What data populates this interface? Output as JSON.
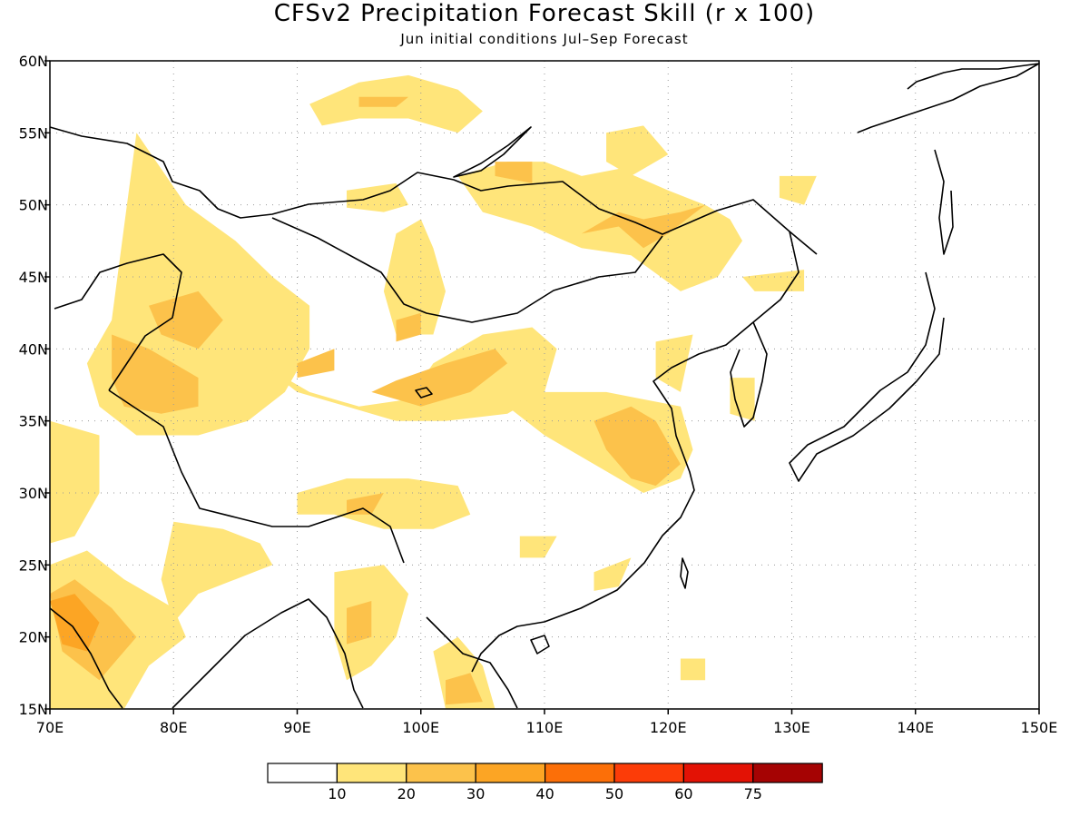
{
  "title": "CFSv2 Precipitation Forecast Skill (r x 100)",
  "subtitle": "Jun initial conditions  Jul–Sep Forecast",
  "map": {
    "lon_range": [
      70,
      150
    ],
    "lat_range": [
      15,
      60
    ],
    "lon_ticks": [
      {
        "value": 70,
        "label": "70E"
      },
      {
        "value": 80,
        "label": "80E"
      },
      {
        "value": 90,
        "label": "90E"
      },
      {
        "value": 100,
        "label": "100E"
      },
      {
        "value": 110,
        "label": "110E"
      },
      {
        "value": 120,
        "label": "120E"
      },
      {
        "value": 130,
        "label": "130E"
      },
      {
        "value": 140,
        "label": "140E"
      },
      {
        "value": 150,
        "label": "150E"
      }
    ],
    "lat_ticks": [
      {
        "value": 15,
        "label": "15N"
      },
      {
        "value": 20,
        "label": "20N"
      },
      {
        "value": 25,
        "label": "25N"
      },
      {
        "value": 30,
        "label": "30N"
      },
      {
        "value": 35,
        "label": "35N"
      },
      {
        "value": 40,
        "label": "40N"
      },
      {
        "value": 45,
        "label": "45N"
      },
      {
        "value": 50,
        "label": "50N"
      },
      {
        "value": 55,
        "label": "55N"
      },
      {
        "value": 60,
        "label": "60N"
      }
    ],
    "grid": true,
    "colors": {
      "c10": "#ffe57a",
      "c20": "#fcc24b",
      "c30": "#fca524"
    },
    "regions": [
      {
        "level": 10,
        "points": [
          [
            77,
            55
          ],
          [
            81,
            50
          ],
          [
            85,
            47.5
          ],
          [
            88,
            45
          ],
          [
            91,
            43
          ],
          [
            91,
            40
          ],
          [
            89,
            37
          ],
          [
            86,
            35
          ],
          [
            82,
            34
          ],
          [
            77,
            34
          ],
          [
            74,
            36
          ],
          [
            73,
            39
          ],
          [
            75,
            42
          ]
        ]
      },
      {
        "level": 20,
        "points": [
          [
            75,
            41
          ],
          [
            78,
            40
          ],
          [
            82,
            38
          ],
          [
            82,
            36
          ],
          [
            79,
            35.5
          ],
          [
            76,
            36
          ],
          [
            75,
            38
          ]
        ]
      },
      {
        "level": 20,
        "points": [
          [
            78,
            43
          ],
          [
            82,
            44
          ],
          [
            84,
            42
          ],
          [
            82,
            40
          ],
          [
            79,
            41
          ]
        ]
      },
      {
        "level": 10,
        "points": [
          [
            87,
            39
          ],
          [
            91,
            37
          ],
          [
            95,
            36
          ],
          [
            99,
            36.5
          ],
          [
            101,
            39
          ],
          [
            105,
            41
          ],
          [
            109,
            41.5
          ],
          [
            111,
            40
          ],
          [
            110,
            37
          ],
          [
            107,
            35.5
          ],
          [
            102,
            35
          ],
          [
            98,
            35
          ],
          [
            94,
            36
          ],
          [
            90,
            37
          ]
        ]
      },
      {
        "level": 20,
        "points": [
          [
            96,
            37
          ],
          [
            100,
            36
          ],
          [
            104,
            37
          ],
          [
            107,
            39
          ],
          [
            106,
            40
          ],
          [
            102,
            39
          ],
          [
            98,
            37.8
          ]
        ]
      },
      {
        "level": 20,
        "points": [
          [
            90,
            39
          ],
          [
            93,
            40
          ],
          [
            93,
            38.5
          ],
          [
            90,
            38
          ]
        ]
      },
      {
        "level": 10,
        "points": [
          [
            98,
            48
          ],
          [
            100,
            49
          ],
          [
            101,
            47
          ],
          [
            102,
            44
          ],
          [
            101,
            41
          ],
          [
            98,
            41
          ],
          [
            97,
            44
          ]
        ]
      },
      {
        "level": 20,
        "points": [
          [
            98,
            42
          ],
          [
            100,
            42.5
          ],
          [
            100,
            41
          ],
          [
            98,
            40.5
          ]
        ]
      },
      {
        "level": 10,
        "points": [
          [
            104,
            37
          ],
          [
            107,
            36
          ],
          [
            110,
            34
          ],
          [
            114,
            32
          ],
          [
            118,
            30
          ],
          [
            121,
            31
          ],
          [
            122,
            33
          ],
          [
            121,
            36
          ],
          [
            118,
            36.5
          ],
          [
            115,
            37
          ],
          [
            111,
            37
          ]
        ]
      },
      {
        "level": 20,
        "points": [
          [
            114,
            35
          ],
          [
            117,
            36
          ],
          [
            119,
            35
          ],
          [
            121,
            32
          ],
          [
            119,
            30.5
          ],
          [
            117,
            31
          ],
          [
            115,
            33
          ]
        ]
      },
      {
        "level": 10,
        "points": [
          [
            103,
            52
          ],
          [
            107,
            53
          ],
          [
            110,
            53
          ],
          [
            113,
            52
          ],
          [
            116,
            52.5
          ],
          [
            120,
            51
          ],
          [
            123,
            50
          ],
          [
            125,
            49
          ],
          [
            126,
            47.5
          ],
          [
            124,
            45
          ],
          [
            121,
            44
          ],
          [
            117,
            46.5
          ],
          [
            113,
            47
          ],
          [
            109,
            48.5
          ],
          [
            105,
            49.5
          ]
        ]
      },
      {
        "level": 20,
        "points": [
          [
            113,
            48
          ],
          [
            116,
            48.5
          ],
          [
            118,
            47
          ],
          [
            120,
            48
          ],
          [
            123,
            50
          ],
          [
            121,
            49.5
          ],
          [
            118,
            49
          ],
          [
            116,
            49.5
          ]
        ]
      },
      {
        "level": 20,
        "points": [
          [
            106,
            53
          ],
          [
            109,
            53
          ],
          [
            109,
            51.5
          ],
          [
            106,
            52
          ]
        ]
      },
      {
        "level": 10,
        "points": [
          [
            91,
            57
          ],
          [
            95,
            58.5
          ],
          [
            99,
            59
          ],
          [
            103,
            58
          ],
          [
            105,
            56.5
          ],
          [
            103,
            55
          ],
          [
            99,
            56
          ],
          [
            95,
            56
          ],
          [
            92,
            55.5
          ]
        ]
      },
      {
        "level": 20,
        "points": [
          [
            95,
            57.5
          ],
          [
            99,
            57.5
          ],
          [
            98,
            56.8
          ],
          [
            95,
            56.8
          ]
        ]
      },
      {
        "level": 10,
        "points": [
          [
            94,
            51
          ],
          [
            98,
            51.5
          ],
          [
            99,
            50
          ],
          [
            97,
            49.5
          ],
          [
            94,
            49.8
          ]
        ]
      },
      {
        "level": 10,
        "points": [
          [
            115,
            55
          ],
          [
            118,
            55.5
          ],
          [
            120,
            53.5
          ],
          [
            117,
            52
          ],
          [
            115,
            53
          ]
        ]
      },
      {
        "level": 10,
        "points": [
          [
            129,
            52
          ],
          [
            132,
            52
          ],
          [
            131,
            50
          ],
          [
            129,
            50.5
          ]
        ]
      },
      {
        "level": 10,
        "points": [
          [
            126,
            45
          ],
          [
            131,
            45.5
          ],
          [
            131,
            44
          ],
          [
            127,
            44
          ]
        ]
      },
      {
        "level": 10,
        "points": [
          [
            70,
            35
          ],
          [
            74,
            34
          ],
          [
            74,
            30
          ],
          [
            72,
            27
          ],
          [
            70,
            26.5
          ]
        ]
      },
      {
        "level": 10,
        "points": [
          [
            70,
            25
          ],
          [
            73,
            26
          ],
          [
            76,
            24
          ],
          [
            80,
            22
          ],
          [
            81,
            20
          ],
          [
            78,
            18
          ],
          [
            76,
            15
          ],
          [
            70,
            15
          ]
        ]
      },
      {
        "level": 20,
        "points": [
          [
            70,
            23
          ],
          [
            72,
            24
          ],
          [
            75,
            22
          ],
          [
            77,
            20
          ],
          [
            74,
            17
          ],
          [
            71,
            19
          ]
        ]
      },
      {
        "level": 30,
        "points": [
          [
            70,
            22.5
          ],
          [
            72,
            23
          ],
          [
            74,
            21
          ],
          [
            73,
            19
          ],
          [
            71,
            19.5
          ]
        ]
      },
      {
        "level": 10,
        "points": [
          [
            80,
            28
          ],
          [
            84,
            27.5
          ],
          [
            87,
            26.5
          ],
          [
            88,
            25
          ],
          [
            85,
            24
          ],
          [
            82,
            23
          ],
          [
            80,
            21
          ],
          [
            79,
            24
          ]
        ]
      },
      {
        "level": 10,
        "points": [
          [
            90,
            30
          ],
          [
            94,
            31
          ],
          [
            99,
            31
          ],
          [
            103,
            30.5
          ],
          [
            104,
            28.5
          ],
          [
            101,
            27.5
          ],
          [
            97,
            27.5
          ],
          [
            93,
            28.5
          ],
          [
            90,
            28.5
          ]
        ]
      },
      {
        "level": 20,
        "points": [
          [
            94,
            29.5
          ],
          [
            97,
            30
          ],
          [
            96,
            28.5
          ],
          [
            94,
            28.5
          ]
        ]
      },
      {
        "level": 10,
        "points": [
          [
            93,
            24.5
          ],
          [
            97,
            25
          ],
          [
            99,
            23
          ],
          [
            98,
            20
          ],
          [
            96,
            18
          ],
          [
            94,
            17
          ],
          [
            93,
            20
          ]
        ]
      },
      {
        "level": 20,
        "points": [
          [
            94,
            22
          ],
          [
            96,
            22.5
          ],
          [
            96,
            20
          ],
          [
            94,
            19.5
          ]
        ]
      },
      {
        "level": 10,
        "points": [
          [
            101,
            19
          ],
          [
            103,
            20
          ],
          [
            105,
            18
          ],
          [
            106,
            15
          ],
          [
            102,
            15
          ]
        ]
      },
      {
        "level": 20,
        "points": [
          [
            102,
            17
          ],
          [
            104,
            17.5
          ],
          [
            105,
            15.5
          ],
          [
            102,
            15.3
          ]
        ]
      },
      {
        "level": 10,
        "points": [
          [
            114,
            24.5
          ],
          [
            117,
            25.5
          ],
          [
            116,
            23.5
          ],
          [
            114,
            23.2
          ]
        ]
      },
      {
        "level": 10,
        "points": [
          [
            108,
            27
          ],
          [
            111,
            27
          ],
          [
            110,
            25.5
          ],
          [
            108,
            25.5
          ]
        ]
      },
      {
        "level": 10,
        "points": [
          [
            121,
            18.5
          ],
          [
            123,
            18.5
          ],
          [
            123,
            17
          ],
          [
            121,
            17
          ]
        ]
      },
      {
        "level": 10,
        "points": [
          [
            119,
            40.5
          ],
          [
            122,
            41
          ],
          [
            121,
            37
          ],
          [
            119,
            38
          ]
        ]
      },
      {
        "level": 10,
        "points": [
          [
            125,
            38
          ],
          [
            127,
            38
          ],
          [
            127,
            35
          ],
          [
            125,
            35.5
          ]
        ]
      }
    ]
  },
  "colorbar": {
    "labels": [
      "10",
      "20",
      "30",
      "40",
      "50",
      "60",
      "75"
    ],
    "colors": [
      "#ffffff",
      "#ffe57a",
      "#fcc24b",
      "#fca524",
      "#fc6f08",
      "#fc3c08",
      "#e31205",
      "#a50303"
    ]
  }
}
